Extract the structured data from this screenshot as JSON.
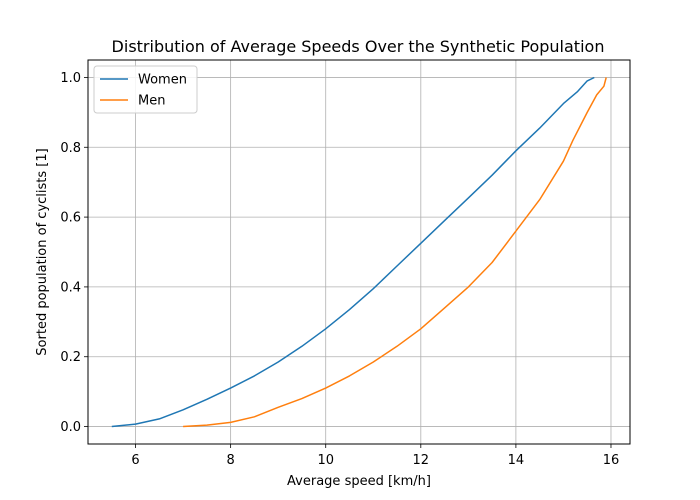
{
  "chart_data": {
    "type": "line",
    "title": "Distribution of Average Speeds Over the Synthetic Population",
    "xlabel": "Average speed [km/h]",
    "ylabel": "Sorted population of cyclists [1]",
    "xlim": [
      5.0,
      16.4
    ],
    "ylim": [
      -0.05,
      1.05
    ],
    "xticks": [
      "6",
      "8",
      "10",
      "12",
      "14",
      "16"
    ],
    "xtick_values": [
      6,
      8,
      10,
      12,
      14,
      16
    ],
    "yticks": [
      "0.0",
      "0.2",
      "0.4",
      "0.6",
      "0.8",
      "1.0"
    ],
    "ytick_values": [
      0.0,
      0.2,
      0.4,
      0.6,
      0.8,
      1.0
    ],
    "grid": true,
    "legend_position": "top-left",
    "series": [
      {
        "name": "Women",
        "color": "#1f77b4",
        "x": [
          5.5,
          6.0,
          6.5,
          7.0,
          7.5,
          8.0,
          8.5,
          9.0,
          9.5,
          10.0,
          10.5,
          11.0,
          11.5,
          12.0,
          12.5,
          13.0,
          13.5,
          14.0,
          14.5,
          15.0,
          15.3,
          15.5,
          15.65
        ],
        "y": [
          0.0,
          0.007,
          0.022,
          0.048,
          0.078,
          0.11,
          0.145,
          0.185,
          0.23,
          0.28,
          0.335,
          0.395,
          0.46,
          0.525,
          0.59,
          0.655,
          0.72,
          0.79,
          0.855,
          0.925,
          0.96,
          0.99,
          1.0
        ]
      },
      {
        "name": "Men",
        "color": "#ff7f0e",
        "x": [
          7.0,
          7.5,
          8.0,
          8.5,
          9.0,
          9.5,
          10.0,
          10.5,
          11.0,
          11.5,
          12.0,
          12.5,
          13.0,
          13.5,
          14.0,
          14.5,
          15.0,
          15.2,
          15.5,
          15.7,
          15.85,
          15.9
        ],
        "y": [
          0.0,
          0.004,
          0.012,
          0.028,
          0.055,
          0.08,
          0.11,
          0.145,
          0.185,
          0.23,
          0.28,
          0.34,
          0.4,
          0.47,
          0.56,
          0.65,
          0.76,
          0.82,
          0.9,
          0.95,
          0.975,
          1.0
        ]
      }
    ]
  }
}
